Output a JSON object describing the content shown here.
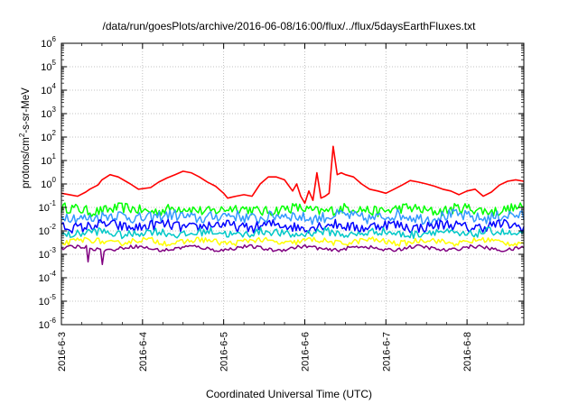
{
  "chart_data": {
    "type": "line",
    "title": "/data/run/goesPlots/archive/2016-06-08/16:00/flux/../flux/5daysEarthFluxes.txt",
    "xlabel": "Coordinated Universal Time (UTC)",
    "ylabel": "protons/cm2-s-sr-MeV",
    "ylabel_parts": {
      "pre": "protons/cm",
      "sup": "2",
      "post": "-s-sr-MeV"
    },
    "yscale": "log",
    "ylim_exp": [
      -6,
      6
    ],
    "y_ticks": [
      {
        "base": "10",
        "exp": "-6"
      },
      {
        "base": "10",
        "exp": "-5"
      },
      {
        "base": "10",
        "exp": "-4"
      },
      {
        "base": "10",
        "exp": "-3"
      },
      {
        "base": "10",
        "exp": "-2"
      },
      {
        "base": "10",
        "exp": "-1"
      },
      {
        "base": "10",
        "exp": "0"
      },
      {
        "base": "10",
        "exp": "1"
      },
      {
        "base": "10",
        "exp": "2"
      },
      {
        "base": "10",
        "exp": "3"
      },
      {
        "base": "10",
        "exp": "4"
      },
      {
        "base": "10",
        "exp": "5"
      },
      {
        "base": "10",
        "exp": "6"
      }
    ],
    "x_ticks": [
      "2016-6-3",
      "2016-6-4",
      "2016-6-5",
      "2016-6-6",
      "2016-6-7",
      "2016-6-8"
    ],
    "x_range_days": [
      0,
      5.7
    ],
    "grid": true,
    "series": [
      {
        "color": "#ff0000",
        "x": [
          0.0,
          0.1,
          0.2,
          0.3,
          0.35,
          0.45,
          0.5,
          0.6,
          0.7,
          0.85,
          0.95,
          1.1,
          1.2,
          1.3,
          1.4,
          1.5,
          1.6,
          1.7,
          1.8,
          1.9,
          2.0,
          2.05,
          2.15,
          2.25,
          2.35,
          2.45,
          2.55,
          2.65,
          2.75,
          2.85,
          2.9,
          2.95,
          3.0,
          3.05,
          3.1,
          3.15,
          3.2,
          3.25,
          3.3,
          3.35,
          3.4,
          3.45,
          3.5,
          3.6,
          3.7,
          3.8,
          3.9,
          4.0,
          4.1,
          4.2,
          4.3,
          4.4,
          4.5,
          4.6,
          4.7,
          4.8,
          4.9,
          5.0,
          5.1,
          5.2,
          5.3,
          5.4,
          5.5,
          5.6,
          5.7
        ],
        "y": [
          0.4,
          0.35,
          0.3,
          0.45,
          0.6,
          0.9,
          1.5,
          2.5,
          2.0,
          1.0,
          0.6,
          0.7,
          1.2,
          1.8,
          2.5,
          3.5,
          3.0,
          2.0,
          1.2,
          0.8,
          0.4,
          0.25,
          0.3,
          0.35,
          0.3,
          1.0,
          2.0,
          2.0,
          1.5,
          0.5,
          1.0,
          0.3,
          0.15,
          0.5,
          0.2,
          3.0,
          0.25,
          0.3,
          0.4,
          40.0,
          2.5,
          3.0,
          2.5,
          2.0,
          1.0,
          0.6,
          0.5,
          0.4,
          0.6,
          0.9,
          1.4,
          1.2,
          1.0,
          0.8,
          0.6,
          0.5,
          0.35,
          0.5,
          0.6,
          0.3,
          0.45,
          0.9,
          1.3,
          1.5,
          1.3
        ]
      },
      {
        "color": "#00ff00",
        "mean": 0.08,
        "spread": 0.45,
        "dips": []
      },
      {
        "color": "#3399ff",
        "mean": 0.04,
        "spread": 0.5,
        "dips": []
      },
      {
        "color": "#0000ff",
        "mean": 0.016,
        "spread": 0.45,
        "dips": []
      },
      {
        "color": "#00c8c8",
        "mean": 0.008,
        "spread": 0.35,
        "dips": []
      },
      {
        "color": "#ffff00",
        "mean": 0.0035,
        "spread": 0.25,
        "dips": []
      },
      {
        "color": "#800080",
        "mean": 0.0018,
        "spread": 0.15,
        "dips": [
          0.32,
          0.5
        ]
      }
    ]
  }
}
